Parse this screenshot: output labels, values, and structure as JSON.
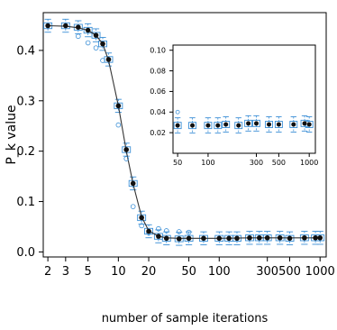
{
  "chart_data": [
    {
      "type": "scatter",
      "role": "main",
      "title": "",
      "xlabel": "number of sample iterations",
      "ylabel": "P_k value",
      "xscale": "log",
      "xlim": [
        1.8,
        1150
      ],
      "ylim": [
        -0.01,
        0.475
      ],
      "x_ticks": [
        2,
        3,
        5,
        10,
        20,
        50,
        100,
        300,
        500,
        1000
      ],
      "x_tick_labels": [
        "2",
        "3",
        "5",
        "10",
        "20",
        "50",
        "100",
        "300",
        "500",
        "1000"
      ],
      "y_ticks": [
        0.0,
        0.1,
        0.2,
        0.3,
        0.4
      ],
      "y_tick_labels": [
        "0.0",
        "0.1",
        "0.2",
        "0.3",
        "0.4"
      ],
      "series": [
        {
          "marker": "filled circle (mean)",
          "x": [
            2,
            3,
            4,
            5,
            6,
            7,
            8,
            10,
            12,
            14,
            17,
            20,
            25,
            30,
            40,
            50,
            70,
            100,
            125,
            150,
            200,
            250,
            300,
            400,
            500,
            700,
            900,
            1000
          ],
          "y": [
            0.449,
            0.449,
            0.446,
            0.44,
            0.43,
            0.413,
            0.382,
            0.29,
            0.203,
            0.136,
            0.068,
            0.041,
            0.031,
            0.027,
            0.026,
            0.027,
            0.027,
            0.027,
            0.027,
            0.027,
            0.028,
            0.028,
            0.028,
            0.028,
            0.027,
            0.028,
            0.028,
            0.028
          ]
        },
        {
          "marker": "open circle (outlier)",
          "x": [
            4,
            5,
            6,
            7,
            10,
            12,
            14,
            17,
            20,
            25,
            30,
            40,
            50
          ],
          "y": [
            0.428,
            0.415,
            0.405,
            0.38,
            0.252,
            0.185,
            0.09,
            0.052,
            0.038,
            0.046,
            0.042,
            0.04,
            0.039
          ]
        }
      ],
      "fit_curve": {
        "style": "solid dark line",
        "x": [
          2,
          3,
          4,
          5,
          6,
          7,
          8,
          10,
          12,
          14,
          17,
          20,
          25,
          30,
          40,
          50,
          70,
          100,
          200,
          300,
          500,
          1000
        ],
        "y": [
          0.449,
          0.448,
          0.445,
          0.44,
          0.43,
          0.413,
          0.38,
          0.29,
          0.2,
          0.135,
          0.07,
          0.042,
          0.031,
          0.028,
          0.027,
          0.027,
          0.027,
          0.027,
          0.028,
          0.028,
          0.028,
          0.028
        ]
      },
      "colors": {
        "mean": "#111111",
        "box": "#3b8fd6",
        "line": "#333333",
        "axis": "#000000"
      }
    },
    {
      "type": "scatter",
      "role": "inset",
      "title": "",
      "xlabel": "",
      "ylabel": "",
      "xscale": "log",
      "xlim": [
        45,
        1150
      ],
      "ylim": [
        0,
        0.105
      ],
      "x_ticks": [
        50,
        100,
        300,
        500,
        1000
      ],
      "x_tick_labels": [
        "50",
        "100",
        "300",
        "500",
        "1000"
      ],
      "y_ticks": [
        0.02,
        0.04,
        0.06,
        0.08,
        0.1
      ],
      "y_tick_labels": [
        "0.02",
        "0.04",
        "0.06",
        "0.08",
        "0.10"
      ],
      "series": [
        {
          "marker": "filled circle (mean)",
          "x": [
            50,
            70,
            100,
            125,
            150,
            200,
            250,
            300,
            400,
            500,
            700,
            900,
            1000
          ],
          "y": [
            0.027,
            0.027,
            0.027,
            0.027,
            0.028,
            0.027,
            0.029,
            0.029,
            0.028,
            0.028,
            0.028,
            0.029,
            0.028
          ]
        },
        {
          "marker": "open circle (outlier)",
          "x": [
            50
          ],
          "y": [
            0.04
          ]
        }
      ],
      "colors": {
        "mean": "#111111",
        "box": "#3b8fd6",
        "line": "#333333",
        "axis": "#000000"
      }
    }
  ]
}
